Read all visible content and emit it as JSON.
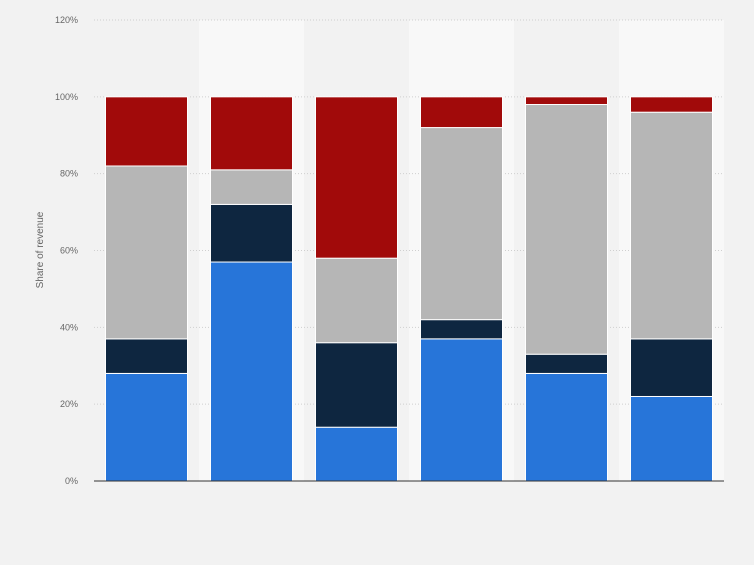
{
  "chart_data": {
    "type": "bar",
    "stacked": true,
    "categories": [
      "",
      "",
      "",
      "",
      "",
      ""
    ],
    "ylabel": "Share of revenue",
    "ylim": [
      0,
      120
    ],
    "y_ticks": [
      0,
      20,
      40,
      60,
      80,
      100,
      120
    ],
    "y_tick_labels": [
      "0%",
      "20%",
      "40%",
      "60%",
      "80%",
      "100%",
      "120%"
    ],
    "grid": true,
    "legend": "none",
    "series": [
      {
        "color": "#2775d9",
        "values": [
          28,
          57,
          14,
          37,
          28,
          22
        ]
      },
      {
        "color": "#0e2640",
        "values": [
          9,
          15,
          22,
          5,
          5,
          15
        ]
      },
      {
        "color": "#b6b6b6",
        "values": [
          45,
          9,
          22,
          50,
          65,
          59
        ]
      },
      {
        "color": "#a10a0a",
        "values": [
          18,
          19,
          42,
          8,
          2,
          4
        ]
      }
    ]
  }
}
